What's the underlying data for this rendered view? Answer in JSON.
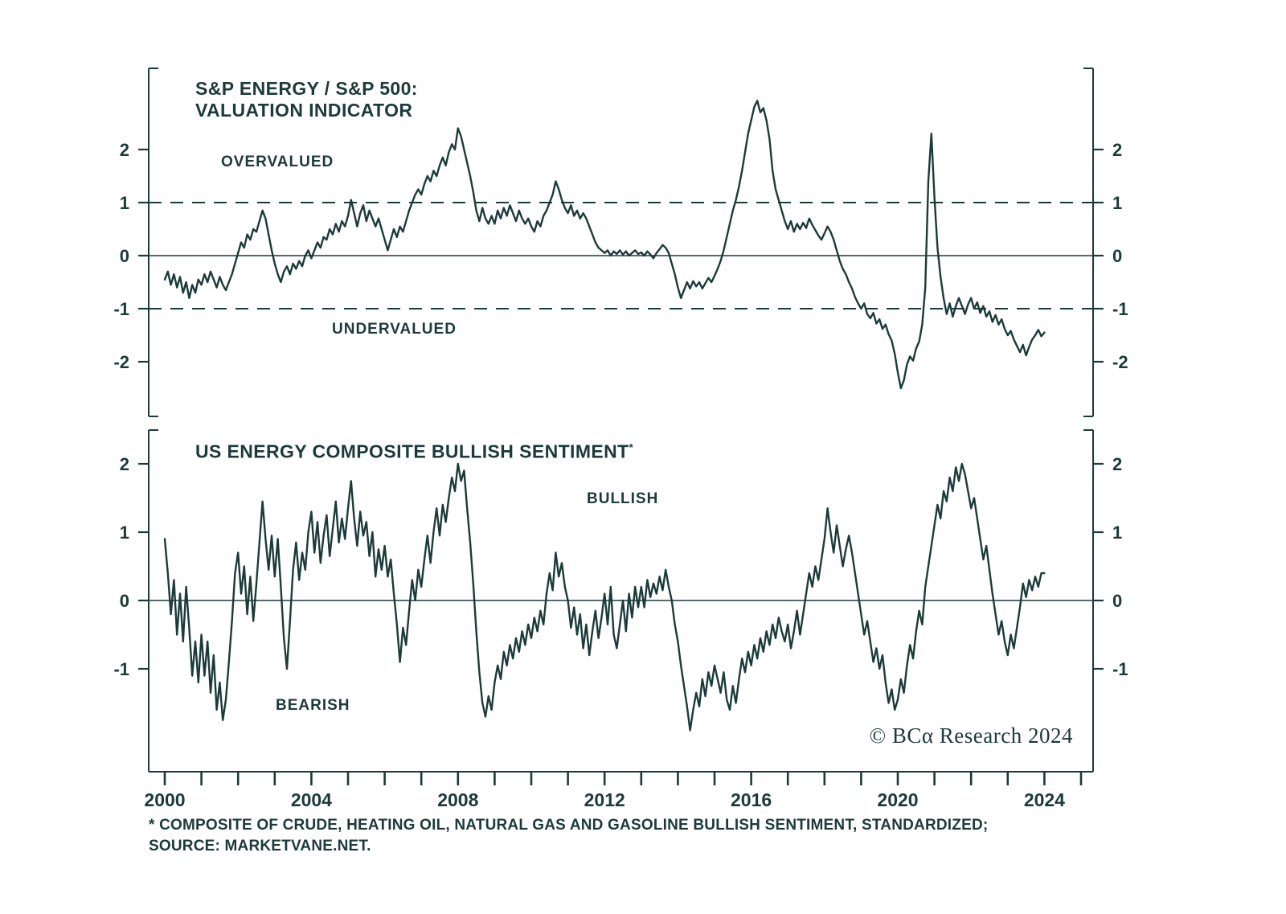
{
  "page": {
    "background": "#ffffff",
    "ink": "#1c3a3a"
  },
  "panels": {
    "top": {
      "title_line1": "S&P ENERGY / S&P 500:",
      "title_line2": "VALUATION INDICATOR",
      "annotation_overvalued": "OVERVALUED",
      "annotation_undervalued": "UNDERVALUED"
    },
    "bottom": {
      "title": "US ENERGY COMPOSITE BULLISH SENTIMENT",
      "title_superscript": "*",
      "annotation_bullish": "BULLISH",
      "annotation_bearish": "BEARISH"
    }
  },
  "copyright": "© BCα Research 2024",
  "footnote": {
    "line1": "* COMPOSITE OF CRUDE, HEATING OIL, NATURAL GAS AND GASOLINE BULLISH SENTIMENT, STANDARDIZED;",
    "line2": "SOURCE: MARKETVANE.NET."
  },
  "chart_data": [
    {
      "type": "line",
      "title": "S&P ENERGY / S&P 500: VALUATION INDICATOR",
      "annotations": [
        "OVERVALUED",
        "UNDERVALUED"
      ],
      "yticks": [
        -2,
        -1,
        0,
        1,
        2
      ],
      "ylim": [
        -2.9,
        3.2
      ],
      "reference_lines": {
        "solid": [
          0
        ],
        "dashed": [
          1,
          -1
        ]
      },
      "x": {
        "start_year": 2000,
        "points_per_year": 12,
        "end_year": 2024,
        "labeled_ticks": [
          2000,
          2004,
          2008,
          2012,
          2016,
          2020,
          2024
        ],
        "minor_tick_years": 1,
        "xlim": [
          1999.6,
          2025.3
        ]
      },
      "series": [
        {
          "name": "valuation_indicator",
          "values": [
            -0.45,
            -0.3,
            -0.55,
            -0.35,
            -0.6,
            -0.4,
            -0.7,
            -0.5,
            -0.8,
            -0.55,
            -0.7,
            -0.45,
            -0.55,
            -0.35,
            -0.5,
            -0.3,
            -0.45,
            -0.6,
            -0.4,
            -0.55,
            -0.65,
            -0.5,
            -0.35,
            -0.15,
            0.05,
            0.25,
            0.15,
            0.4,
            0.3,
            0.5,
            0.45,
            0.65,
            0.85,
            0.7,
            0.4,
            0.1,
            -0.15,
            -0.35,
            -0.5,
            -0.3,
            -0.2,
            -0.35,
            -0.15,
            -0.25,
            -0.1,
            -0.2,
            0.0,
            0.1,
            -0.05,
            0.1,
            0.25,
            0.15,
            0.35,
            0.3,
            0.5,
            0.4,
            0.6,
            0.45,
            0.65,
            0.55,
            0.75,
            1.05,
            0.8,
            0.55,
            0.8,
            0.95,
            0.65,
            0.85,
            0.7,
            0.55,
            0.7,
            0.5,
            0.3,
            0.1,
            0.3,
            0.5,
            0.35,
            0.55,
            0.45,
            0.65,
            0.85,
            1.0,
            1.15,
            1.25,
            1.15,
            1.35,
            1.5,
            1.4,
            1.6,
            1.5,
            1.7,
            1.85,
            1.7,
            1.95,
            2.1,
            2.0,
            2.4,
            2.25,
            2.0,
            1.75,
            1.5,
            1.2,
            0.85,
            0.65,
            0.9,
            0.7,
            0.6,
            0.75,
            0.6,
            0.85,
            0.7,
            0.9,
            0.75,
            0.95,
            0.8,
            0.65,
            0.85,
            0.7,
            0.6,
            0.7,
            0.55,
            0.45,
            0.65,
            0.55,
            0.75,
            0.85,
            1.0,
            1.15,
            1.4,
            1.25,
            1.05,
            0.9,
            0.8,
            0.95,
            0.75,
            0.85,
            0.7,
            0.8,
            0.7,
            0.55,
            0.4,
            0.25,
            0.15,
            0.1,
            0.05,
            0.1,
            0.0,
            0.08,
            0.03,
            0.1,
            0.02,
            0.08,
            0.0,
            0.05,
            0.1,
            0.03,
            0.06,
            0.0,
            0.08,
            0.02,
            -0.05,
            0.05,
            0.12,
            0.2,
            0.15,
            0.05,
            -0.15,
            -0.35,
            -0.6,
            -0.8,
            -0.65,
            -0.5,
            -0.62,
            -0.48,
            -0.58,
            -0.5,
            -0.62,
            -0.52,
            -0.42,
            -0.5,
            -0.38,
            -0.25,
            -0.1,
            0.1,
            0.35,
            0.6,
            0.85,
            1.05,
            1.3,
            1.6,
            1.95,
            2.3,
            2.55,
            2.8,
            2.92,
            2.7,
            2.78,
            2.55,
            2.2,
            1.6,
            1.25,
            1.05,
            0.85,
            0.65,
            0.5,
            0.65,
            0.45,
            0.6,
            0.5,
            0.62,
            0.52,
            0.7,
            0.58,
            0.48,
            0.38,
            0.3,
            0.42,
            0.55,
            0.45,
            0.3,
            0.1,
            -0.1,
            -0.25,
            -0.35,
            -0.5,
            -0.62,
            -0.78,
            -0.9,
            -1.0,
            -0.9,
            -1.1,
            -1.18,
            -1.08,
            -1.28,
            -1.2,
            -1.38,
            -1.3,
            -1.48,
            -1.6,
            -1.85,
            -2.2,
            -2.5,
            -2.35,
            -2.05,
            -1.9,
            -1.98,
            -1.75,
            -1.62,
            -1.3,
            -0.6,
            1.4,
            2.3,
            1.1,
            0.15,
            -0.4,
            -0.8,
            -1.1,
            -0.9,
            -1.15,
            -0.95,
            -0.8,
            -0.95,
            -1.1,
            -0.92,
            -0.8,
            -1.0,
            -0.88,
            -1.08,
            -0.95,
            -1.15,
            -1.05,
            -1.25,
            -1.12,
            -1.3,
            -1.2,
            -1.38,
            -1.5,
            -1.42,
            -1.58,
            -1.7,
            -1.82,
            -1.68,
            -1.88,
            -1.72,
            -1.58,
            -1.5,
            -1.4,
            -1.52,
            -1.45
          ]
        }
      ]
    },
    {
      "type": "line",
      "title": "US ENERGY COMPOSITE BULLISH SENTIMENT*",
      "annotations": [
        "BULLISH",
        "BEARISH"
      ],
      "yticks": [
        -1,
        0,
        1,
        2
      ],
      "ylim": [
        -2.2,
        2.4
      ],
      "reference_lines": {
        "solid": [
          0
        ],
        "dashed": []
      },
      "x": {
        "start_year": 2000,
        "points_per_year": 12,
        "end_year": 2024,
        "labeled_ticks": [
          2000,
          2004,
          2008,
          2012,
          2016,
          2020,
          2024
        ],
        "minor_tick_years": 1,
        "xlim": [
          1999.6,
          2025.3
        ]
      },
      "series": [
        {
          "name": "bullish_sentiment",
          "values": [
            0.9,
            0.4,
            -0.2,
            0.3,
            -0.5,
            0.1,
            -0.6,
            0.2,
            -0.4,
            -1.1,
            -0.6,
            -1.2,
            -0.5,
            -1.1,
            -0.6,
            -1.35,
            -0.8,
            -1.6,
            -1.2,
            -1.75,
            -1.45,
            -0.9,
            -0.3,
            0.4,
            0.7,
            0.1,
            0.5,
            -0.2,
            0.35,
            -0.3,
            0.25,
            0.85,
            1.45,
            0.9,
            0.45,
            0.95,
            0.35,
            0.9,
            0.2,
            -0.55,
            -1.0,
            -0.3,
            0.45,
            0.85,
            0.3,
            0.7,
            0.45,
            1.0,
            1.3,
            0.7,
            1.15,
            0.55,
            0.95,
            1.25,
            0.65,
            1.05,
            1.45,
            0.85,
            1.2,
            0.9,
            1.35,
            1.75,
            1.2,
            0.8,
            1.3,
            0.95,
            1.15,
            0.65,
            1.0,
            0.35,
            0.75,
            0.45,
            0.8,
            0.35,
            0.6,
            0.1,
            -0.35,
            -0.9,
            -0.4,
            -0.65,
            -0.15,
            0.3,
            0.0,
            0.45,
            0.2,
            0.6,
            0.95,
            0.55,
            1.0,
            1.35,
            0.95,
            1.4,
            1.15,
            1.5,
            1.8,
            1.6,
            2.0,
            1.75,
            1.9,
            1.35,
            0.85,
            0.25,
            -0.45,
            -1.05,
            -1.5,
            -1.7,
            -1.4,
            -1.6,
            -1.2,
            -0.95,
            -1.15,
            -0.75,
            -0.95,
            -0.65,
            -0.85,
            -0.55,
            -0.75,
            -0.45,
            -0.65,
            -0.35,
            -0.55,
            -0.25,
            -0.45,
            -0.15,
            -0.35,
            0.1,
            0.4,
            0.15,
            0.7,
            0.35,
            0.55,
            0.2,
            0.0,
            -0.4,
            -0.1,
            -0.5,
            -0.2,
            -0.7,
            -0.35,
            -0.8,
            -0.45,
            -0.15,
            -0.55,
            -0.25,
            0.1,
            -0.35,
            0.2,
            -0.5,
            -0.7,
            -0.35,
            0.0,
            -0.45,
            0.1,
            -0.25,
            0.2,
            -0.1,
            0.2,
            -0.1,
            0.3,
            0.05,
            0.25,
            0.1,
            0.35,
            0.15,
            0.45,
            0.2,
            0.0,
            -0.35,
            -0.6,
            -0.95,
            -1.25,
            -1.55,
            -1.9,
            -1.6,
            -1.35,
            -1.55,
            -1.15,
            -1.4,
            -1.05,
            -1.25,
            -0.95,
            -1.15,
            -1.35,
            -1.05,
            -1.45,
            -1.6,
            -1.25,
            -1.5,
            -1.15,
            -0.85,
            -1.05,
            -0.75,
            -0.95,
            -0.65,
            -0.85,
            -0.55,
            -0.75,
            -0.45,
            -0.65,
            -0.35,
            -0.55,
            -0.25,
            -0.45,
            -0.6,
            -0.35,
            -0.7,
            -0.45,
            -0.15,
            -0.5,
            -0.2,
            0.1,
            0.4,
            0.2,
            0.5,
            0.3,
            0.6,
            0.9,
            1.35,
            1.0,
            0.7,
            1.1,
            0.8,
            0.5,
            0.75,
            0.95,
            0.7,
            0.4,
            0.1,
            -0.2,
            -0.5,
            -0.3,
            -0.6,
            -0.9,
            -0.7,
            -1.0,
            -0.8,
            -1.2,
            -1.5,
            -1.3,
            -1.6,
            -1.45,
            -1.15,
            -1.35,
            -0.95,
            -0.65,
            -0.85,
            -0.45,
            -0.15,
            -0.35,
            0.2,
            0.5,
            0.8,
            1.1,
            1.4,
            1.2,
            1.6,
            1.45,
            1.8,
            1.6,
            1.95,
            1.75,
            2.0,
            1.85,
            1.6,
            1.35,
            1.5,
            1.2,
            0.9,
            0.6,
            0.8,
            0.45,
            0.1,
            -0.2,
            -0.5,
            -0.3,
            -0.6,
            -0.8,
            -0.5,
            -0.7,
            -0.4,
            -0.1,
            0.25,
            0.05,
            0.3,
            0.15,
            0.35,
            0.2,
            0.4,
            0.4
          ]
        }
      ]
    }
  ]
}
